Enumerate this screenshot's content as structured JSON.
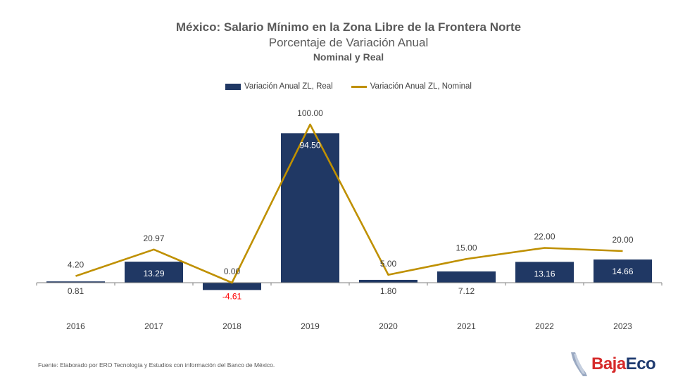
{
  "chart_data": {
    "type": "bar",
    "title": "México: Salario Mínimo en la Zona Libre de la Frontera Norte",
    "subtitle": "Porcentaje de Variación Anual",
    "subtitle2": "Nominal y Real",
    "categories": [
      "2016",
      "2017",
      "2018",
      "2019",
      "2020",
      "2021",
      "2022",
      "2023"
    ],
    "series": [
      {
        "name": "Variación Anual ZL, Real",
        "type": "bar",
        "color": "#203864",
        "values": [
          0.81,
          13.29,
          -4.61,
          94.5,
          1.8,
          7.12,
          13.16,
          14.66
        ],
        "labels": [
          "0.81",
          "13.29",
          "-4.61",
          "94.50",
          "1.80",
          "7.12",
          "13.16",
          "14.66"
        ]
      },
      {
        "name": "Variación Anual ZL, Nominal",
        "type": "line",
        "color": "#BF9000",
        "values": [
          4.2,
          20.97,
          0.0,
          100.0,
          5.0,
          15.0,
          22.0,
          20.0
        ],
        "labels": [
          "4.20",
          "20.97",
          "0.00",
          "100.00",
          "5.00",
          "15.00",
          "22.00",
          "20.00"
        ]
      }
    ],
    "negative_label_color": "#FF0000",
    "ylim": [
      -10,
      105
    ],
    "grid": false,
    "legend_position": "top-center"
  },
  "footer": {
    "source": "Fuente: Elaborado por ERO Tecnología y Estudios con información del Banco de México."
  },
  "logo": {
    "part1": "Baja",
    "part2": "Eco"
  }
}
